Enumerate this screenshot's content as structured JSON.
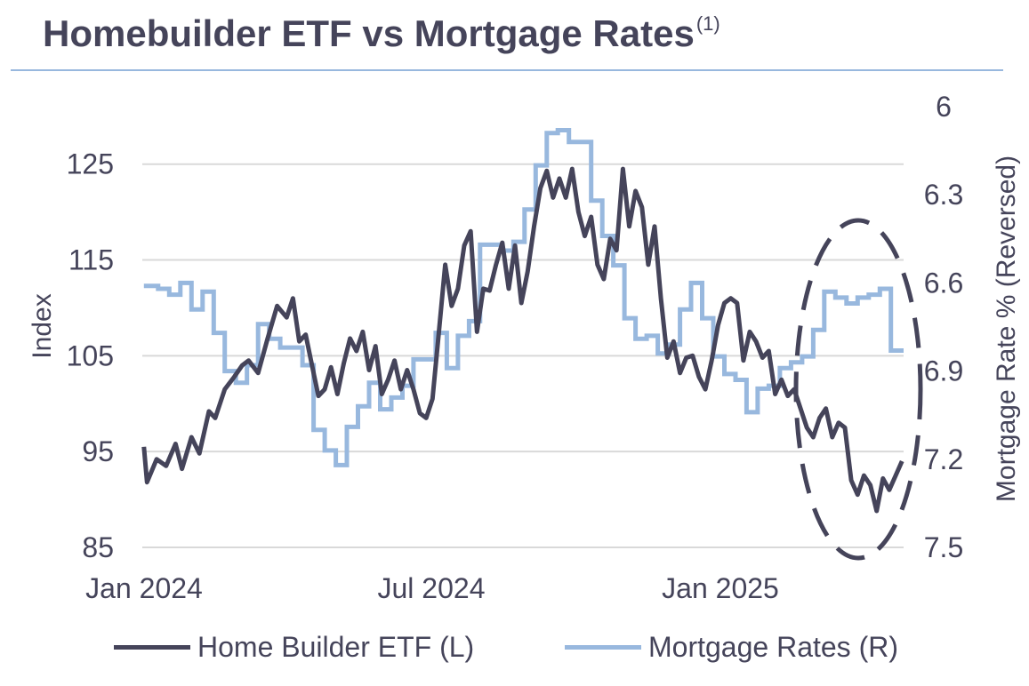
{
  "title": "Homebuilder ETF vs Mortgage Rates",
  "title_note": "(1)",
  "colors": {
    "etf": "#45445a",
    "rates": "#98b8de",
    "grid": "#d9d9d9",
    "text": "#45445a"
  },
  "chart_data": {
    "type": "line",
    "xlabel": "",
    "x_ticks": [
      "Jan 2024",
      "Jul 2024",
      "Jan 2025"
    ],
    "y_left": {
      "label": "Index",
      "ticks": [
        85,
        95,
        105,
        115,
        125
      ],
      "range": [
        85,
        131
      ]
    },
    "y_right": {
      "label": "Mortgage Rate % (Reversed)",
      "ticks": [
        "6",
        "6.3",
        "6.6",
        "6.9",
        "7.2",
        "7.5"
      ],
      "range": [
        6.0,
        7.5
      ],
      "reversed": true
    },
    "grid": true,
    "legend_position": "bottom",
    "annotation": "dashed ellipse highlighting spring 2025 divergence",
    "series": [
      {
        "name": "Home Builder ETF (L)",
        "axis": "left",
        "x": [
          "2024-01-02",
          "2024-01-04",
          "2024-01-10",
          "2024-01-16",
          "2024-01-22",
          "2024-01-26",
          "2024-02-01",
          "2024-02-06",
          "2024-02-12",
          "2024-02-16",
          "2024-02-22",
          "2024-02-28",
          "2024-03-04",
          "2024-03-08",
          "2024-03-14",
          "2024-03-20",
          "2024-03-26",
          "2024-04-01",
          "2024-04-05",
          "2024-04-09",
          "2024-04-13",
          "2024-04-17",
          "2024-04-21",
          "2024-04-25",
          "2024-04-29",
          "2024-05-03",
          "2024-05-07",
          "2024-05-11",
          "2024-05-15",
          "2024-05-19",
          "2024-05-23",
          "2024-05-27",
          "2024-05-31",
          "2024-06-04",
          "2024-06-08",
          "2024-06-12",
          "2024-06-16",
          "2024-06-20",
          "2024-06-24",
          "2024-06-28",
          "2024-07-02",
          "2024-07-06",
          "2024-07-10",
          "2024-07-14",
          "2024-07-18",
          "2024-07-22",
          "2024-07-26",
          "2024-07-30",
          "2024-08-03",
          "2024-08-07",
          "2024-08-11",
          "2024-08-15",
          "2024-08-19",
          "2024-08-23",
          "2024-08-27",
          "2024-08-31",
          "2024-09-04",
          "2024-09-08",
          "2024-09-12",
          "2024-09-16",
          "2024-09-20",
          "2024-09-24",
          "2024-09-28",
          "2024-10-02",
          "2024-10-06",
          "2024-10-10",
          "2024-10-14",
          "2024-10-18",
          "2024-10-22",
          "2024-10-26",
          "2024-10-30",
          "2024-11-03",
          "2024-11-07",
          "2024-11-11",
          "2024-11-15",
          "2024-11-19",
          "2024-11-23",
          "2024-11-27",
          "2024-12-01",
          "2024-12-05",
          "2024-12-09",
          "2024-12-13",
          "2024-12-17",
          "2024-12-21",
          "2024-12-25",
          "2024-12-29",
          "2025-01-02",
          "2025-01-06",
          "2025-01-10",
          "2025-01-14",
          "2025-01-18",
          "2025-01-22",
          "2025-01-26",
          "2025-01-30",
          "2025-02-03",
          "2025-02-07",
          "2025-02-11",
          "2025-02-15",
          "2025-02-19",
          "2025-02-23",
          "2025-02-27",
          "2025-03-03",
          "2025-03-07",
          "2025-03-11",
          "2025-03-15",
          "2025-03-19",
          "2025-03-23",
          "2025-03-27",
          "2025-03-31",
          "2025-04-04",
          "2025-04-08",
          "2025-04-12",
          "2025-04-16",
          "2025-04-20",
          "2025-04-24"
        ],
        "values": [
          95.5,
          91.8,
          94.2,
          93.5,
          95.8,
          93.2,
          96.5,
          94.8,
          99.2,
          98.5,
          101.5,
          102.8,
          104.0,
          104.5,
          103.2,
          106.8,
          110.2,
          109.0,
          111.0,
          106.5,
          107.2,
          104.0,
          100.8,
          101.5,
          103.8,
          101.0,
          104.2,
          106.8,
          105.5,
          107.5,
          103.5,
          106.0,
          101.0,
          102.5,
          104.5,
          101.5,
          103.5,
          101.5,
          99.0,
          98.5,
          100.5,
          107.5,
          114.5,
          110.2,
          112.0,
          116.5,
          118.0,
          107.5,
          112.0,
          111.8,
          114.5,
          116.8,
          112.0,
          116.5,
          110.5,
          113.8,
          118.5,
          122.5,
          124.3,
          121.5,
          123.5,
          121.5,
          124.5,
          120.0,
          117.5,
          119.5,
          114.5,
          113.0,
          117.2,
          116.0,
          124.5,
          118.5,
          122.2,
          120.5,
          114.5,
          118.5,
          111.0,
          104.8,
          106.5,
          103.2,
          104.8,
          105.0,
          102.8,
          101.5,
          104.5,
          108.2,
          110.5,
          111.0,
          110.5,
          104.5,
          107.5,
          106.5,
          104.8,
          105.5,
          101.0,
          102.5,
          100.8,
          101.5,
          99.5,
          97.5,
          96.5,
          98.5,
          99.5,
          96.5,
          98.0,
          97.5,
          92.0,
          90.5,
          92.5,
          91.5,
          88.8,
          92.2,
          91.0,
          92.5,
          94.0
        ]
      },
      {
        "name": "Mortgage Rates (R)",
        "axis": "right",
        "x": [
          "2024-01-02",
          "2024-01-11",
          "2024-01-18",
          "2024-01-25",
          "2024-02-01",
          "2024-02-08",
          "2024-02-15",
          "2024-02-22",
          "2024-02-29",
          "2024-03-07",
          "2024-03-14",
          "2024-03-21",
          "2024-03-28",
          "2024-04-04",
          "2024-04-11",
          "2024-04-18",
          "2024-04-25",
          "2024-05-02",
          "2024-05-09",
          "2024-05-16",
          "2024-05-23",
          "2024-05-30",
          "2024-06-06",
          "2024-06-13",
          "2024-06-20",
          "2024-06-27",
          "2024-07-04",
          "2024-07-11",
          "2024-07-18",
          "2024-07-25",
          "2024-08-01",
          "2024-08-08",
          "2024-08-15",
          "2024-08-22",
          "2024-08-29",
          "2024-09-05",
          "2024-09-12",
          "2024-09-19",
          "2024-09-26",
          "2024-10-03",
          "2024-10-10",
          "2024-10-17",
          "2024-10-24",
          "2024-10-31",
          "2024-11-07",
          "2024-11-14",
          "2024-11-21",
          "2024-11-28",
          "2024-12-05",
          "2024-12-12",
          "2024-12-19",
          "2024-12-26",
          "2025-01-02",
          "2025-01-09",
          "2025-01-16",
          "2025-01-23",
          "2025-01-30",
          "2025-02-06",
          "2025-02-13",
          "2025-02-20",
          "2025-02-27",
          "2025-03-06",
          "2025-03-13",
          "2025-03-20",
          "2025-03-27",
          "2025-04-03",
          "2025-04-10",
          "2025-04-17",
          "2025-04-24"
        ],
        "values": [
          6.61,
          6.62,
          6.64,
          6.6,
          6.69,
          6.63,
          6.77,
          6.9,
          6.94,
          6.88,
          6.74,
          6.79,
          6.82,
          6.82,
          6.88,
          7.1,
          7.17,
          7.22,
          7.09,
          7.02,
          6.94,
          7.03,
          6.99,
          6.95,
          6.86,
          6.86,
          6.77,
          6.89,
          6.78,
          6.73,
          6.47,
          6.47,
          6.49,
          6.46,
          6.35,
          6.2,
          6.09,
          6.08,
          6.12,
          6.12,
          6.32,
          6.44,
          6.54,
          6.72,
          6.79,
          6.78,
          6.84,
          6.81,
          6.69,
          6.6,
          6.72,
          6.85,
          6.91,
          6.93,
          7.04,
          6.96,
          6.95,
          6.89,
          6.87,
          6.85,
          6.76,
          6.63,
          6.65,
          6.67,
          6.65,
          6.64,
          6.62,
          6.83,
          6.83
        ]
      }
    ]
  }
}
